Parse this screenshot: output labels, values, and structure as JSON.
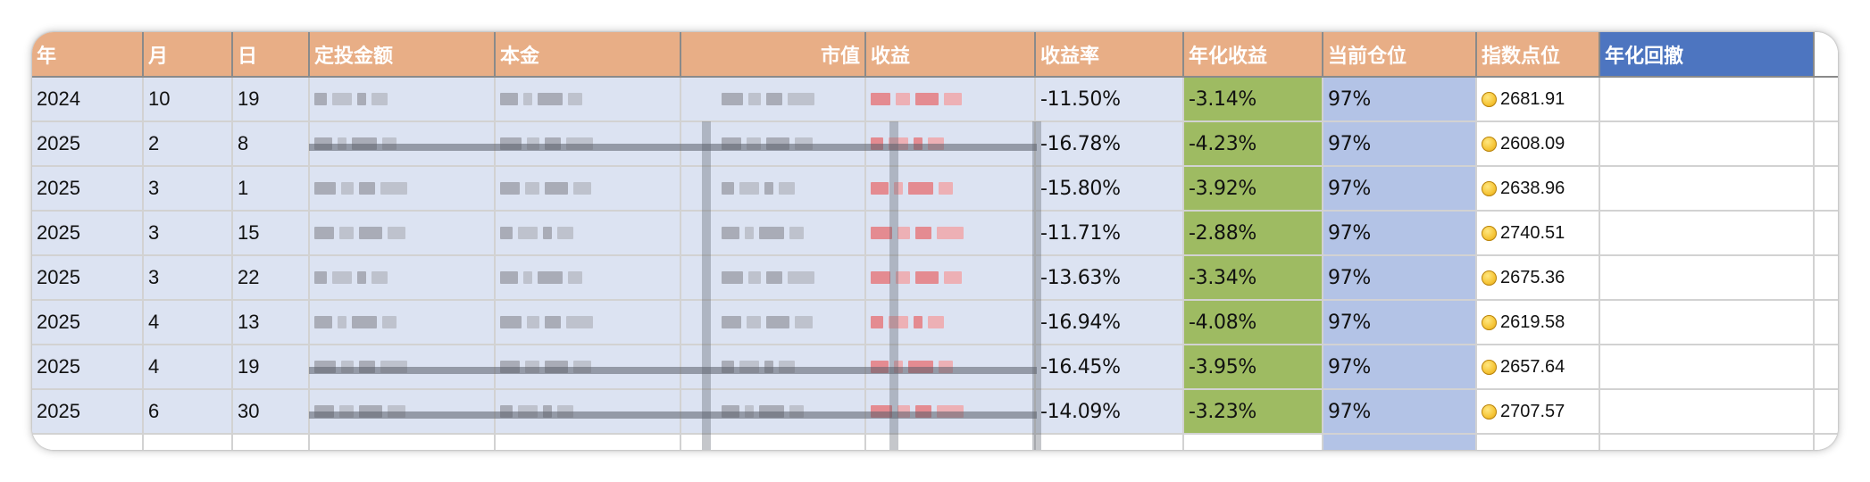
{
  "sheet": {
    "headers": {
      "year": "年",
      "month": "月",
      "day": "日",
      "invest_amount": "定投金额",
      "principal": "本金",
      "market_value": "市值",
      "profit": "收益",
      "return_rate": "收益率",
      "annual_return": "年化收益",
      "position": "当前仓位",
      "index_level": "指数点位",
      "annual_drawdown": "年化回撤"
    },
    "rows": [
      {
        "year": "2024",
        "month": "10",
        "day": "19",
        "return_rate": "-11.50%",
        "annual_return": "-3.14%",
        "position": "97%",
        "index_level": "2681.91"
      },
      {
        "year": "2025",
        "month": "2",
        "day": "8",
        "return_rate": "-16.78%",
        "annual_return": "-4.23%",
        "position": "97%",
        "index_level": "2608.09"
      },
      {
        "year": "2025",
        "month": "3",
        "day": "1",
        "return_rate": "-15.80%",
        "annual_return": "-3.92%",
        "position": "97%",
        "index_level": "2638.96"
      },
      {
        "year": "2025",
        "month": "3",
        "day": "15",
        "return_rate": "-11.71%",
        "annual_return": "-2.88%",
        "position": "97%",
        "index_level": "2740.51"
      },
      {
        "year": "2025",
        "month": "3",
        "day": "22",
        "return_rate": "-13.63%",
        "annual_return": "-3.34%",
        "position": "97%",
        "index_level": "2675.36"
      },
      {
        "year": "2025",
        "month": "4",
        "day": "13",
        "return_rate": "-16.94%",
        "annual_return": "-4.08%",
        "position": "97%",
        "index_level": "2619.58"
      },
      {
        "year": "2025",
        "month": "4",
        "day": "19",
        "return_rate": "-16.45%",
        "annual_return": "-3.95%",
        "position": "97%",
        "index_level": "2657.64"
      },
      {
        "year": "2025",
        "month": "6",
        "day": "30",
        "return_rate": "-14.09%",
        "annual_return": "-3.23%",
        "position": "97%",
        "index_level": "2707.57"
      }
    ]
  },
  "icons": {
    "index_marker": "gold-coin-icon"
  },
  "colors": {
    "header_orange": "#e8ae86",
    "header_blue": "#4d75c0",
    "annual_green": "#9ebb62",
    "position_blue": "#b3c3e6",
    "row_light_blue": "#dce3f2"
  }
}
